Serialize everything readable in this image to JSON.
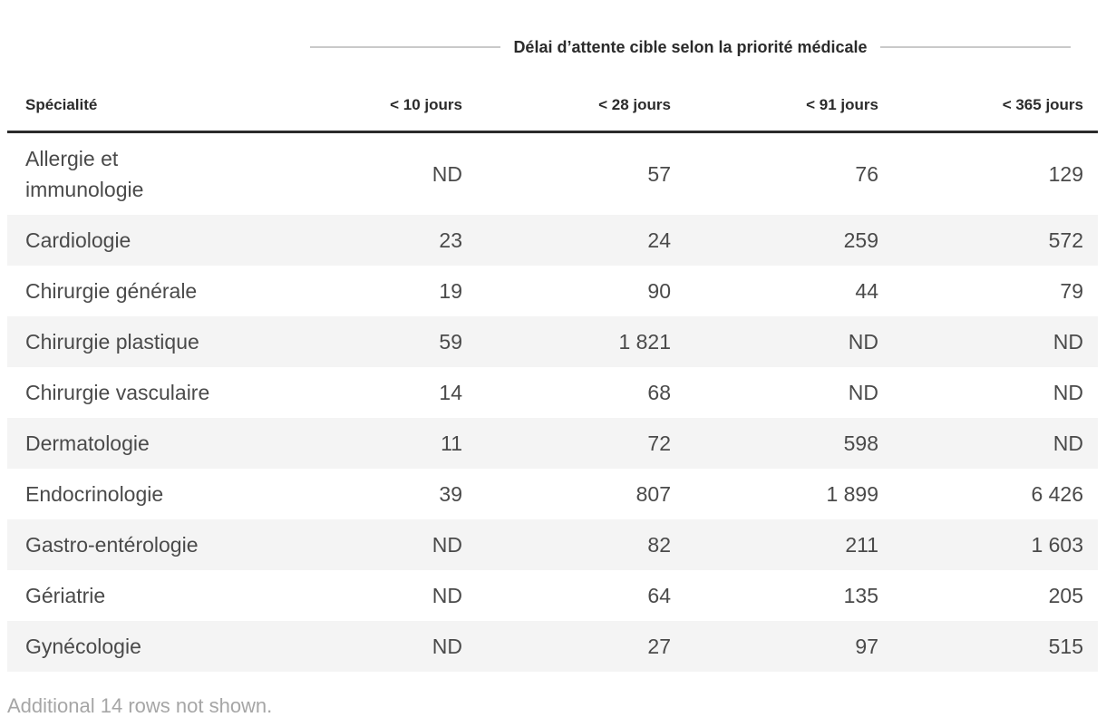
{
  "table": {
    "group_title": "Délai d’attente cible selon la priorité médicale",
    "columns": [
      "Spécialité",
      "< 10 jours",
      "< 28 jours",
      "< 91 jours",
      "< 365 jours"
    ],
    "rows": [
      {
        "specialty": "Allergie et immunologie",
        "values": [
          "ND",
          "57",
          "76",
          "129"
        ]
      },
      {
        "specialty": "Cardiologie",
        "values": [
          "23",
          "24",
          "259",
          "572"
        ]
      },
      {
        "specialty": "Chirurgie générale",
        "values": [
          "19",
          "90",
          "44",
          "79"
        ]
      },
      {
        "specialty": "Chirurgie plastique",
        "values": [
          "59",
          "1 821",
          "ND",
          "ND"
        ]
      },
      {
        "specialty": "Chirurgie vasculaire",
        "values": [
          "14",
          "68",
          "ND",
          "ND"
        ]
      },
      {
        "specialty": "Dermatologie",
        "values": [
          "11",
          "72",
          "598",
          "ND"
        ]
      },
      {
        "specialty": "Endocrinologie",
        "values": [
          "39",
          "807",
          "1 899",
          "6 426"
        ]
      },
      {
        "specialty": "Gastro-entérologie",
        "values": [
          "ND",
          "82",
          "211",
          "1 603"
        ]
      },
      {
        "specialty": "Gériatrie",
        "values": [
          "ND",
          "64",
          "135",
          "205"
        ]
      },
      {
        "specialty": "Gynécologie",
        "values": [
          "ND",
          "27",
          "97",
          "515"
        ]
      }
    ],
    "note": "Additional 14 rows not shown."
  },
  "colors": {
    "header_text": "#2b2b2b",
    "thick_rule": "#2b2b2b",
    "title_rule": "#c9c9c9",
    "row_text": "#4a4a4a",
    "stripe": "#f4f4f4",
    "note_text": "#a6a6a6"
  },
  "chart_data": {
    "type": "table",
    "title": "Délai d’attente cible selon la priorité médicale",
    "columns": [
      "Spécialité",
      "< 10 jours",
      "< 28 jours",
      "< 91 jours",
      "< 365 jours"
    ],
    "rows": [
      [
        "Allergie et immunologie",
        "ND",
        "57",
        "76",
        "129"
      ],
      [
        "Cardiologie",
        "23",
        "24",
        "259",
        "572"
      ],
      [
        "Chirurgie générale",
        "19",
        "90",
        "44",
        "79"
      ],
      [
        "Chirurgie plastique",
        "59",
        "1 821",
        "ND",
        "ND"
      ],
      [
        "Chirurgie vasculaire",
        "14",
        "68",
        "ND",
        "ND"
      ],
      [
        "Dermatologie",
        "11",
        "72",
        "598",
        "ND"
      ],
      [
        "Endocrinologie",
        "39",
        "807",
        "1 899",
        "6 426"
      ],
      [
        "Gastro-entérologie",
        "ND",
        "82",
        "211",
        "1 603"
      ],
      [
        "Gériatrie",
        "ND",
        "64",
        "135",
        "205"
      ],
      [
        "Gynécologie",
        "ND",
        "27",
        "97",
        "515"
      ]
    ],
    "note": "Additional 14 rows not shown.",
    "missing_value_label": "ND",
    "zebra_striping": true
  }
}
